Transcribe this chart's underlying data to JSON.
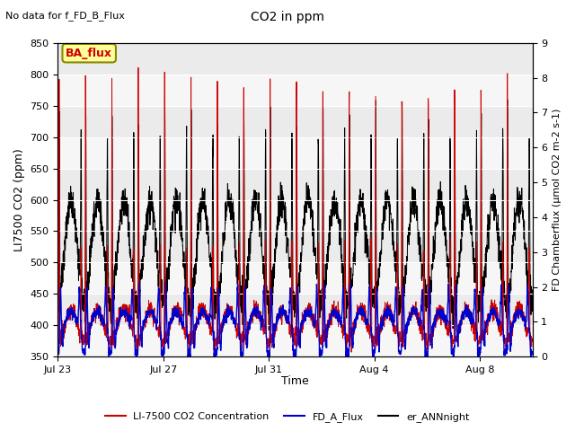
{
  "title": "CO2 in ppm",
  "top_left_text": "No data for f_FD_B_Flux",
  "xlabel": "Time",
  "ylabel_left": "LI7500 CO2 (ppm)",
  "ylabel_right": "FD Chamberflux (μmol CO2 m-2 s-1)",
  "ylim_left": [
    350,
    850
  ],
  "ylim_right": [
    0.0,
    9.0
  ],
  "xtick_labels": [
    "Jul 23",
    "Jul 27",
    "Jul 31",
    "Aug 4",
    "Aug 8"
  ],
  "xtick_days": [
    0,
    4,
    8,
    12,
    16
  ],
  "n_days": 18,
  "color_red": "#cc0000",
  "color_blue": "#0000cc",
  "color_black": "#000000",
  "bg_band_color": "#d0d0d0",
  "legend_box_facecolor": "#ffff99",
  "legend_box_edgecolor": "#888800",
  "legend_box_text": "BA_flux",
  "legend_box_text_color": "#cc0000",
  "legend_entries": [
    "LI-7500 CO2 Concentration",
    "FD_A_Flux",
    "er_ANNnight"
  ],
  "fig_bg_color": "#ffffff",
  "axes_bg_color": "#ebebeb",
  "yticks_left": [
    350,
    400,
    450,
    500,
    550,
    600,
    650,
    700,
    750,
    800,
    850
  ],
  "yticks_right": [
    0.0,
    1.0,
    2.0,
    3.0,
    4.0,
    5.0,
    6.0,
    7.0,
    8.0,
    9.0
  ]
}
